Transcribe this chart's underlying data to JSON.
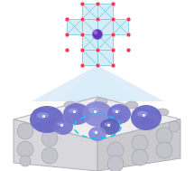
{
  "bg_color": "#ffffff",
  "zeolite_top_color": "#eeeeef",
  "zeolite_front_left_color": "#d8d8dc",
  "zeolite_front_right_color": "#cacace",
  "zeolite_edge_color": "#b0b0b8",
  "hole_color": "#c4c4cc",
  "hole_edge_color": "#a0a0aa",
  "qd_color_main": "#7070cc",
  "qd_color_dark": "#5858b0",
  "qd_highlight": "#aaaaee",
  "beam_color_outer": "#c0dff5",
  "beam_color_inner": "#d8eefb",
  "beam_alpha_outer": 0.5,
  "beam_alpha_inner": 0.6,
  "crystal_face_color": "#a8dff0",
  "crystal_face_alpha": 0.5,
  "crystal_edge_color": "#70c8e0",
  "crystal_node_color": "#ff3355",
  "crystal_center_color": "#6633bb",
  "crystal_center_hi": "#aa88dd",
  "dashed_color": "#00ccff",
  "glow_color": "#b0d8f5",
  "white": "#ffffff"
}
